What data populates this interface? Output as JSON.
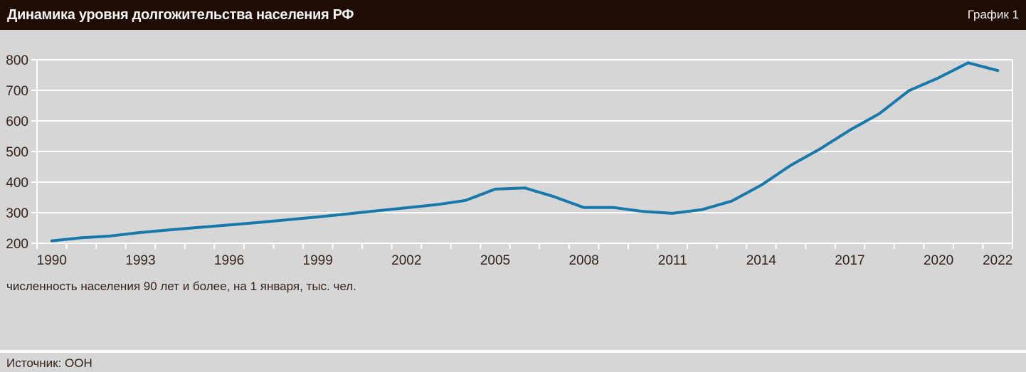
{
  "header": {
    "title": "Динамика уровня долгожительства населения РФ",
    "figure_label": "График 1"
  },
  "caption": "численность населения 90 лет и более, на 1 января, тыс. чел.",
  "footer": {
    "source": "Источник: ООН"
  },
  "colors": {
    "header_bg": "#1e0c05",
    "header_text": "#f7f5f3",
    "page_bg": "#d6d6d6",
    "grid": "#ffffff",
    "line": "#1778a9",
    "text": "#33231a"
  },
  "chart_data": {
    "type": "line",
    "title": "Динамика уровня долгожительства населения РФ",
    "ylabel": "численность населения 90 лет и более, на 1 января, тыс. чел.",
    "x": [
      1990,
      1991,
      1992,
      1993,
      1994,
      1995,
      1996,
      1997,
      1998,
      1999,
      2000,
      2001,
      2002,
      2003,
      2004,
      2005,
      2006,
      2007,
      2008,
      2009,
      2010,
      2011,
      2012,
      2013,
      2014,
      2015,
      2016,
      2017,
      2018,
      2019,
      2020,
      2021,
      2022
    ],
    "values": [
      208,
      218,
      224,
      235,
      244,
      252,
      260,
      268,
      277,
      286,
      296,
      306,
      316,
      326,
      340,
      377,
      381,
      352,
      317,
      317,
      304,
      298,
      310,
      338,
      390,
      455,
      509,
      570,
      624,
      699,
      741,
      790,
      765
    ],
    "ylim": [
      200,
      800
    ],
    "y_ticks": [
      200,
      300,
      400,
      500,
      600,
      700,
      800
    ],
    "x_tick_labels": [
      "1990",
      "1993",
      "1996",
      "1999",
      "2002",
      "2005",
      "2008",
      "2011",
      "2014",
      "2017",
      "2020",
      "2022"
    ],
    "grid": true,
    "legend_position": "none"
  }
}
